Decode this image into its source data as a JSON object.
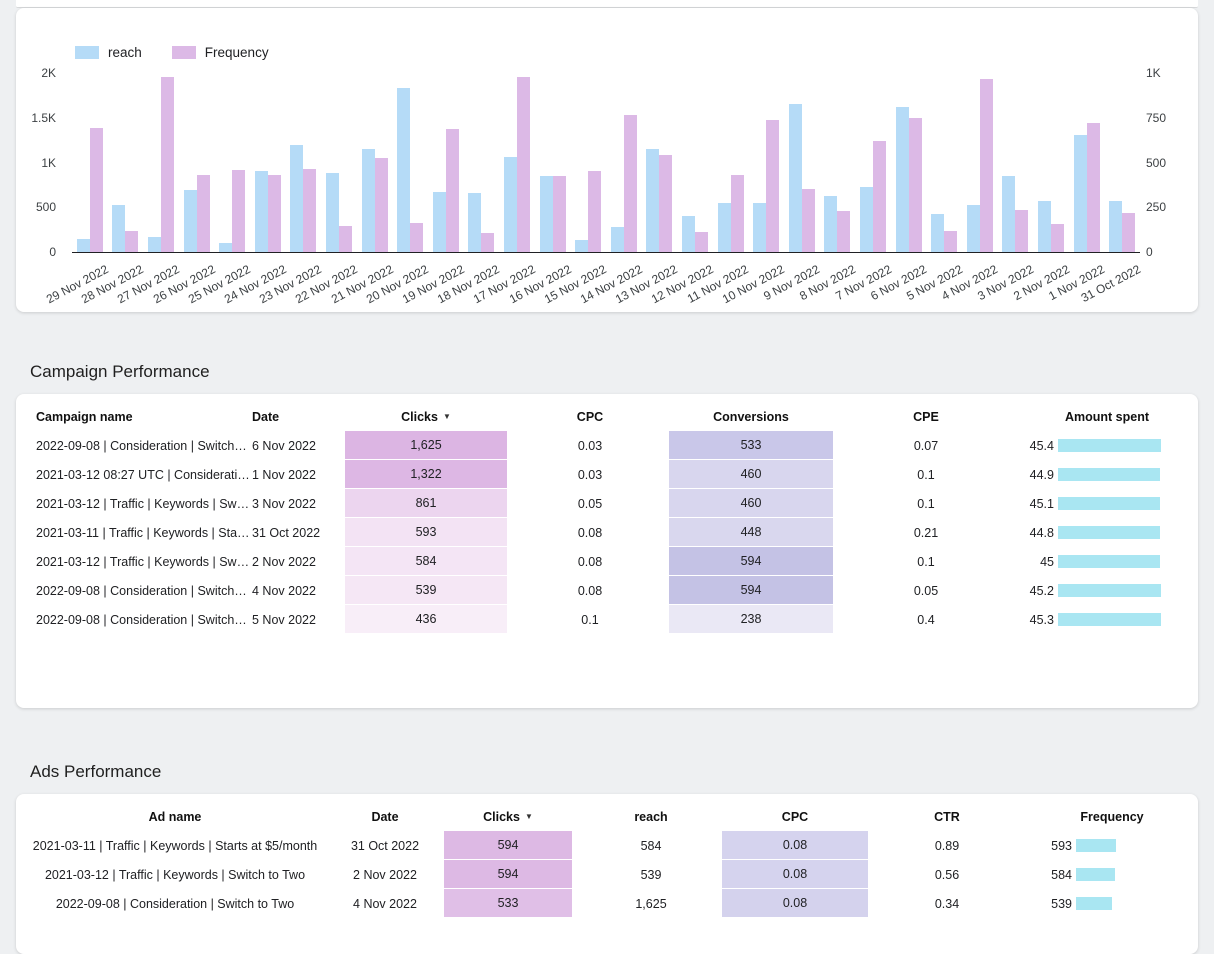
{
  "page": {
    "background": "#eef0f2"
  },
  "chart_data": {
    "type": "bar",
    "title": "",
    "categories": [
      "29 Nov 2022",
      "28 Nov 2022",
      "27 Nov 2022",
      "26 Nov 2022",
      "25 Nov 2022",
      "24 Nov 2022",
      "23 Nov 2022",
      "22 Nov 2022",
      "21 Nov 2022",
      "20 Nov 2022",
      "19 Nov 2022",
      "18 Nov 2022",
      "17 Nov 2022",
      "16 Nov 2022",
      "15 Nov 2022",
      "14 Nov 2022",
      "13 Nov 2022",
      "12 Nov 2022",
      "11 Nov 2022",
      "10 Nov 2022",
      "9 Nov 2022",
      "8 Nov 2022",
      "7 Nov 2022",
      "6 Nov 2022",
      "5 Nov 2022",
      "4 Nov 2022",
      "3 Nov 2022",
      "2 Nov 2022",
      "1 Nov 2022",
      "31 Oct 2022"
    ],
    "series": [
      {
        "name": "reach",
        "axis": "left",
        "color": "#b5dbf7",
        "values": [
          150,
          520,
          170,
          690,
          105,
          910,
          1195,
          880,
          1150,
          1830,
          670,
          660,
          1060,
          850,
          135,
          280,
          1150,
          405,
          545,
          545,
          1650,
          630,
          730,
          1620,
          420,
          525,
          850,
          570,
          1310,
          575
        ]
      },
      {
        "name": "Frequency",
        "axis": "right",
        "color": "#dcb9e6",
        "values": [
          695,
          115,
          980,
          430,
          460,
          430,
          465,
          145,
          525,
          160,
          690,
          105,
          975,
          425,
          455,
          765,
          540,
          110,
          430,
          735,
          350,
          230,
          620,
          750,
          115,
          965,
          235,
          155,
          720,
          220
        ]
      }
    ],
    "left_axis": {
      "ticks": [
        "0",
        "500",
        "1K",
        "1.5K",
        "2K"
      ],
      "ylim": [
        0,
        2000
      ]
    },
    "right_axis": {
      "ticks": [
        "0",
        "250",
        "500",
        "750",
        "1K"
      ],
      "ylim": [
        0,
        1000
      ]
    },
    "grid": false,
    "legend_position": "top-left"
  },
  "campaign_section": {
    "title": "Campaign Performance",
    "columns": [
      "Campaign name",
      "Date",
      "Clicks",
      "CPC",
      "Conversions",
      "CPE",
      "Amount spent"
    ],
    "sort_column": "Clicks",
    "sort_direction": "desc",
    "heatmap_bar_color": "#a9e6f2",
    "rows": [
      {
        "name": "2022-09-08 | Consideration | Switch…",
        "date": "6 Nov 2022",
        "clicks": "1,625",
        "clicks_bg": "#dcb5e3",
        "clicks_dots": false,
        "cpc": "0.03",
        "conversions": "533",
        "conv_bg": "#c9c7e9",
        "conv_dots": true,
        "cpe": "0.07",
        "amount": "45.4",
        "amount_val": 45.4
      },
      {
        "name": "2021-03-12 08:27 UTC | Considerati…",
        "date": "1 Nov 2022",
        "clicks": "1,322",
        "clicks_bg": "#ddb7e4",
        "clicks_dots": false,
        "cpc": "0.03",
        "conversions": "460",
        "conv_bg": "#d8d6ee",
        "conv_dots": true,
        "cpe": "0.1",
        "amount": "44.9",
        "amount_val": 44.9
      },
      {
        "name": "2021-03-12 | Traffic | Keywords | Sw…",
        "date": "3 Nov 2022",
        "clicks": "861",
        "clicks_bg": "#ecd5ef",
        "clicks_dots": false,
        "cpc": "0.05",
        "conversions": "460",
        "conv_bg": "#d8d6ee",
        "conv_dots": true,
        "cpe": "0.1",
        "amount": "45.1",
        "amount_val": 45.1
      },
      {
        "name": "2021-03-11 | Traffic | Keywords | Sta…",
        "date": "31 Oct 2022",
        "clicks": "593",
        "clicks_bg": "#f3e3f4",
        "clicks_dots": true,
        "cpc": "0.08",
        "conversions": "448",
        "conv_bg": "#d9d7ee",
        "conv_dots": true,
        "cpe": "0.21",
        "amount": "44.8",
        "amount_val": 44.8
      },
      {
        "name": "2021-03-12 | Traffic | Keywords | Sw…",
        "date": "2 Nov 2022",
        "clicks": "584",
        "clicks_bg": "#f4e5f5",
        "clicks_dots": true,
        "cpc": "0.08",
        "conversions": "594",
        "conv_bg": "#c4c2e5",
        "conv_dots": false,
        "cpe": "0.1",
        "amount": "45",
        "amount_val": 45.0
      },
      {
        "name": "2022-09-08 | Consideration | Switch…",
        "date": "4 Nov 2022",
        "clicks": "539",
        "clicks_bg": "#f5e7f5",
        "clicks_dots": true,
        "cpc": "0.08",
        "conversions": "594",
        "conv_bg": "#c4c2e5",
        "conv_dots": false,
        "cpe": "0.05",
        "amount": "45.2",
        "amount_val": 45.2
      },
      {
        "name": "2022-09-08 | Consideration | Switch…",
        "date": "5 Nov 2022",
        "clicks": "436",
        "clicks_bg": "#f8eef8",
        "clicks_dots": true,
        "cpc": "0.1",
        "conversions": "238",
        "conv_bg": "#eae8f5",
        "conv_dots": true,
        "cpe": "0.4",
        "amount": "45.3",
        "amount_val": 45.3
      }
    ]
  },
  "ads_section": {
    "title": "Ads Performance",
    "columns": [
      "Ad name",
      "Date",
      "Clicks",
      "reach",
      "CPC",
      "CTR",
      "Frequency"
    ],
    "sort_column": "Clicks",
    "sort_direction": "desc",
    "heatmap_bar_color": "#a9e6f2",
    "rows": [
      {
        "name": "2021-03-11 | Traffic | Keywords | Starts at $5/month",
        "date": "31 Oct 2022",
        "clicks": "594",
        "clicks_bg": "#ddb9e4",
        "clicks_dots": false,
        "reach": "584",
        "cpc": "0.08",
        "cpc_bg": "#d5d3ee",
        "cpc_dots": false,
        "ctr": "0.89",
        "frequency": "593",
        "freq_val": 593
      },
      {
        "name": "2021-03-12 | Traffic | Keywords | Switch to Two",
        "date": "2 Nov 2022",
        "clicks": "594",
        "clicks_bg": "#ddb9e4",
        "clicks_dots": false,
        "reach": "539",
        "cpc": "0.08",
        "cpc_bg": "#d5d3ee",
        "cpc_dots": false,
        "ctr": "0.56",
        "frequency": "584",
        "freq_val": 584
      },
      {
        "name": "2022-09-08 | Consideration | Switch to Two",
        "date": "4 Nov 2022",
        "clicks": "533",
        "clicks_bg": "#e0bfe7",
        "clicks_dots": true,
        "reach": "1,625",
        "cpc": "0.08",
        "cpc_bg": "#d4d2ed",
        "cpc_dots": true,
        "ctr": "0.34",
        "frequency": "539",
        "freq_val": 539
      }
    ]
  }
}
